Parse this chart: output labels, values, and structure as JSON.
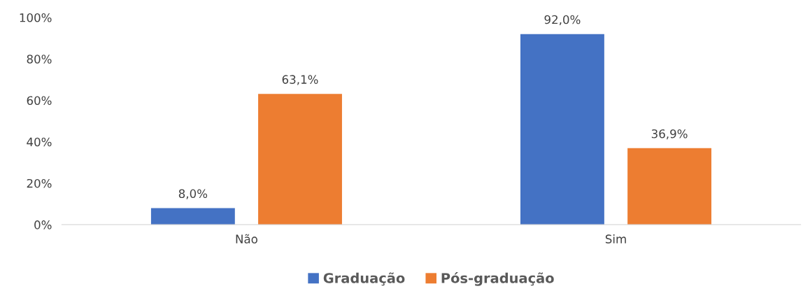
{
  "chart_data": {
    "type": "bar",
    "categories": [
      "Não",
      "Sim"
    ],
    "series": [
      {
        "name": "Graduação",
        "color": "#4472c4",
        "values": [
          8.0,
          92.0
        ],
        "value_labels": [
          "8,0%",
          "92,0%"
        ]
      },
      {
        "name": "Pós-graduação",
        "color": "#ed7d31",
        "values": [
          63.1,
          36.9
        ],
        "value_labels": [
          "63,1%",
          "36,9%"
        ]
      }
    ],
    "ylim": [
      0,
      100
    ],
    "yticks": [
      {
        "value": 0,
        "label": "0%"
      },
      {
        "value": 20,
        "label": "20%"
      },
      {
        "value": 40,
        "label": "40%"
      },
      {
        "value": 60,
        "label": "60%"
      },
      {
        "value": 80,
        "label": "80%"
      },
      {
        "value": 100,
        "label": "100%"
      }
    ],
    "grid": false,
    "legend": "bottom"
  }
}
